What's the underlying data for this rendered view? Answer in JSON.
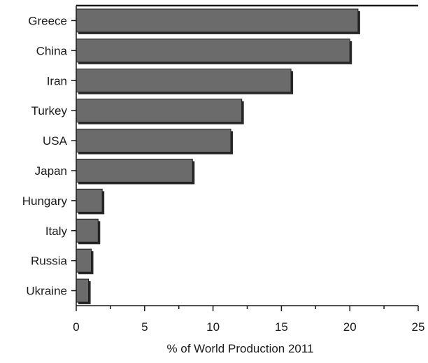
{
  "chart_data": {
    "type": "bar",
    "orientation": "horizontal",
    "categories": [
      "Greece",
      "China",
      "Iran",
      "Turkey",
      "USA",
      "Japan",
      "Hungary",
      "Italy",
      "Russia",
      "Ukraine"
    ],
    "values": [
      20.6,
      20.0,
      15.7,
      12.1,
      11.3,
      8.5,
      1.9,
      1.6,
      1.1,
      0.9
    ],
    "xlabel": "% of World Production 2011",
    "ylabel": "",
    "xlim": [
      0,
      25
    ],
    "x_ticks": [
      "0",
      "5",
      "10",
      "15",
      "20",
      "25"
    ],
    "grid": false,
    "legend": "none",
    "colors": {
      "bar": "#6b6b6b",
      "bar_edge": "#1a1a1a",
      "bar_shadow": "#2a2a2a",
      "axis": "#1a1a1a"
    }
  }
}
